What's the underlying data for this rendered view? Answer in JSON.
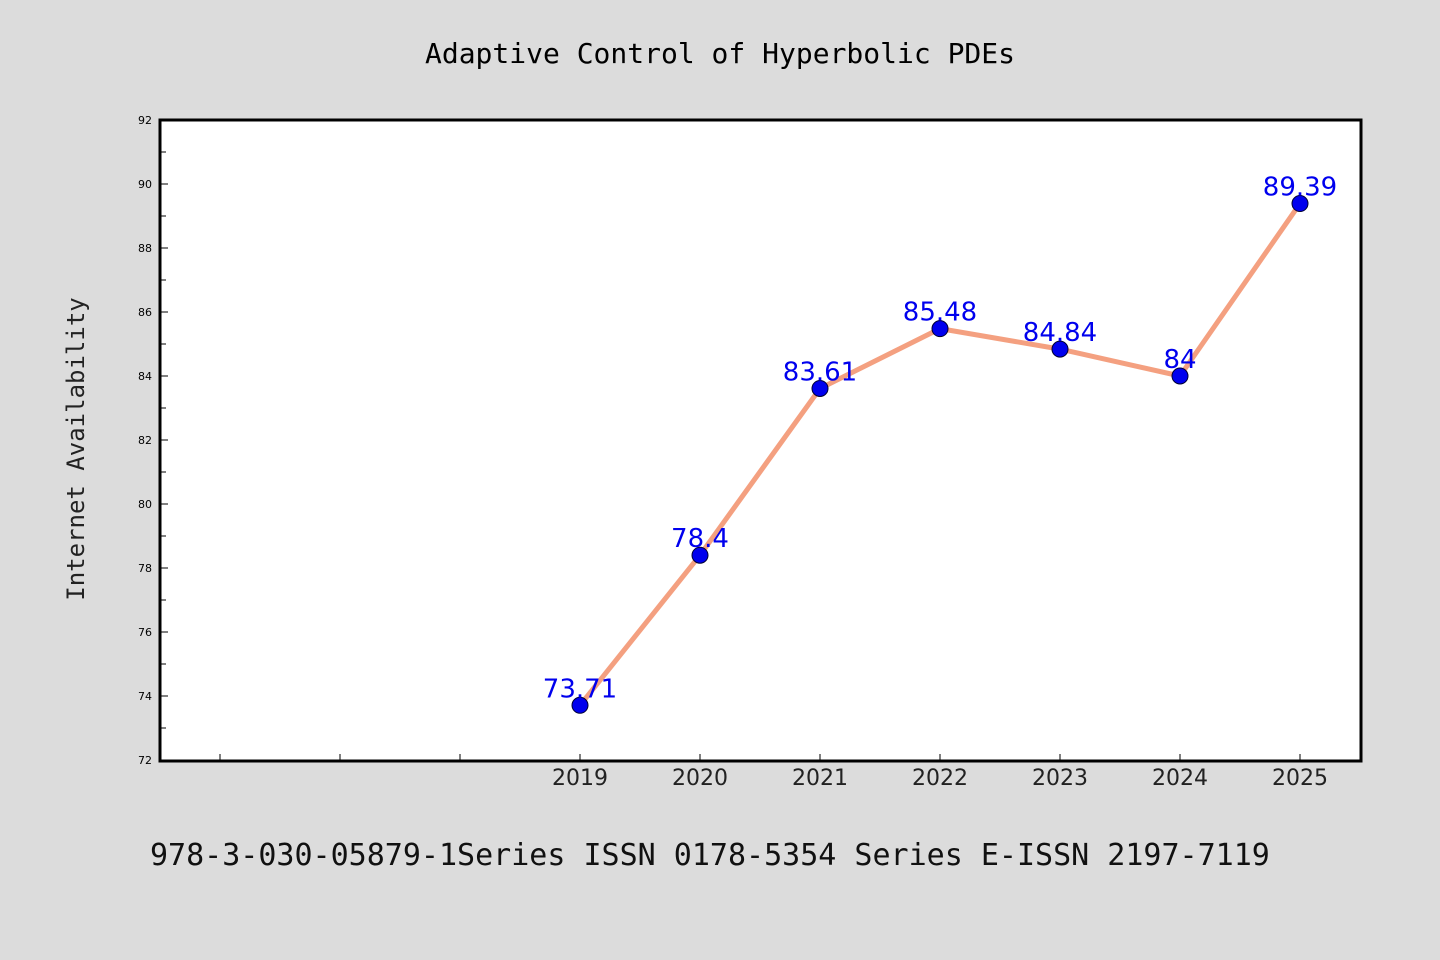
{
  "chart_data": {
    "type": "line",
    "title": "Adaptive Control of Hyperbolic PDEs",
    "xlabel": "",
    "ylabel": "Internet Availability",
    "footer": "978-3-030-05879-1Series ISSN 0178-5354 Series E-ISSN 2197-7119",
    "categories": [
      "2019",
      "2020",
      "2021",
      "2022",
      "2023",
      "2024",
      "2025"
    ],
    "series": [
      {
        "values": [
          73.71,
          78.4,
          83.61,
          85.48,
          84.84,
          84,
          89.39
        ],
        "labels": [
          "73.71",
          "78.4",
          "83.61",
          "85.48",
          "84.84",
          "84",
          "89.39"
        ]
      }
    ],
    "yticks": [
      "72",
      "74",
      "76",
      "78",
      "80",
      "82",
      "84",
      "86",
      "88",
      "90",
      "92"
    ],
    "ylim": [
      72,
      92
    ],
    "grid": false,
    "legend": "none",
    "colors": {
      "line": "#f4a080",
      "marker": "#0000ee",
      "labels": "#0000ee",
      "background": "#dcdcdc",
      "plot": "#ffffff"
    }
  }
}
